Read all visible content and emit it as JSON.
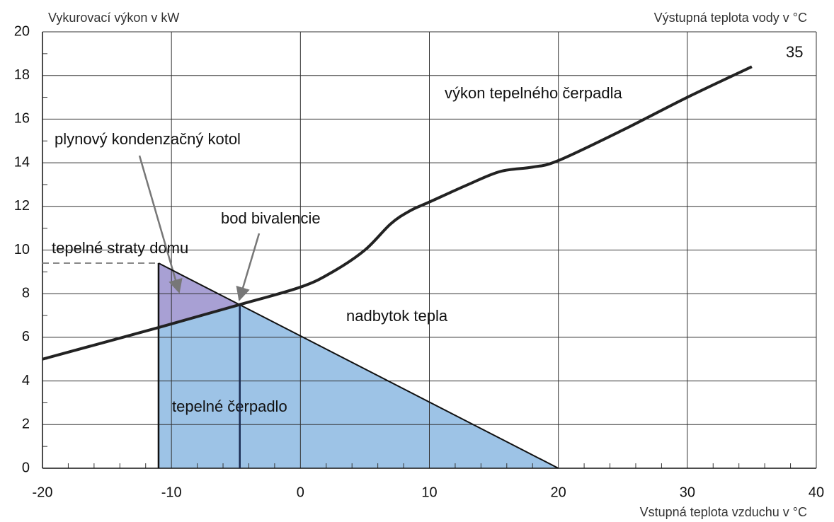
{
  "chart_data": {
    "type": "line",
    "ylabel": "Vykurovací výkon v kW",
    "y2label": "Výstupná teplota vody v °C",
    "xlabel": "Vstupná teplota vzduchu v °C",
    "xlim": [
      -20,
      40
    ],
    "xticks": [
      -20,
      -10,
      0,
      10,
      20,
      30,
      40
    ],
    "ylim": [
      0,
      20
    ],
    "yticks": [
      0,
      2,
      4,
      6,
      8,
      10,
      12,
      14,
      16,
      18,
      20
    ],
    "grid": true,
    "series": [
      {
        "name": "35",
        "color": "#222222",
        "x": [
          -20,
          -11,
          -5,
          0,
          2.5,
          5,
          7,
          8.5,
          10,
          13,
          15.5,
          18,
          20,
          25,
          30,
          35
        ],
        "values": [
          5.0,
          6.45,
          7.45,
          8.3,
          9.0,
          10.0,
          11.2,
          11.8,
          12.2,
          13.0,
          13.6,
          13.8,
          14.1,
          15.5,
          17.0,
          18.4
        ]
      }
    ],
    "heat_loss": {
      "name": "tepelné straty domu",
      "x": [
        -11,
        20
      ],
      "values": [
        9.4,
        0
      ],
      "color": "#111111"
    },
    "bivalence": {
      "label": "bod bivalencie",
      "x": -4.7,
      "y": 7.5
    },
    "annotations": [
      "výkon tepelného čerpadla",
      "plynový kondenzačný kotol",
      "nadbytok tepla",
      "tepelné čerpadlo"
    ],
    "area_colors": {
      "heat_pump": "#9dc3e6",
      "boiler": "#a8a0d4"
    }
  }
}
